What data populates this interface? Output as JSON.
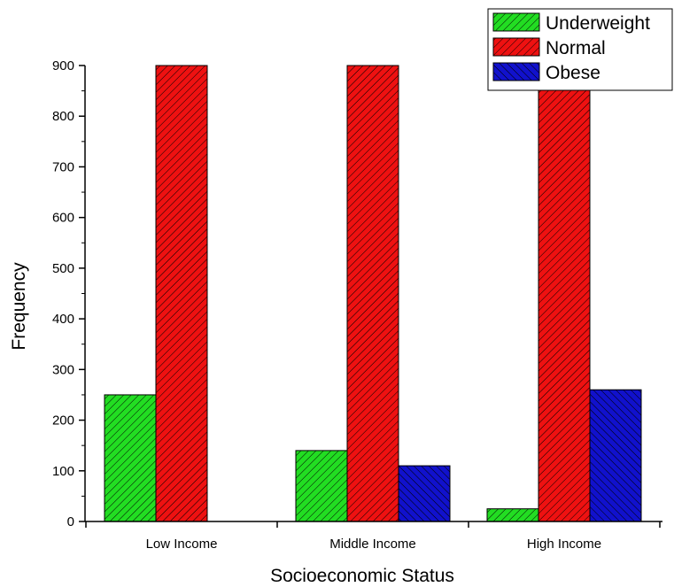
{
  "chart_data": {
    "type": "bar",
    "categories": [
      "Low Income",
      "Middle Income",
      "High Income"
    ],
    "series": [
      {
        "name": "Underweight",
        "values": [
          250,
          140,
          25
        ],
        "color": "#22dd22"
      },
      {
        "name": "Normal",
        "values": [
          900,
          900,
          900
        ],
        "color": "#ee1111"
      },
      {
        "name": "Obese",
        "values": [
          0,
          110,
          260
        ],
        "color": "#1111cc"
      }
    ],
    "xlabel": "Socioeconomic Status",
    "ylabel": "Frequency",
    "ylim": [
      0,
      900
    ],
    "yticks": [
      0,
      100,
      200,
      300,
      400,
      500,
      600,
      700,
      800,
      900
    ],
    "fill_pattern": "diagonal-hatch",
    "grid": false,
    "legend_position": "top-right"
  }
}
